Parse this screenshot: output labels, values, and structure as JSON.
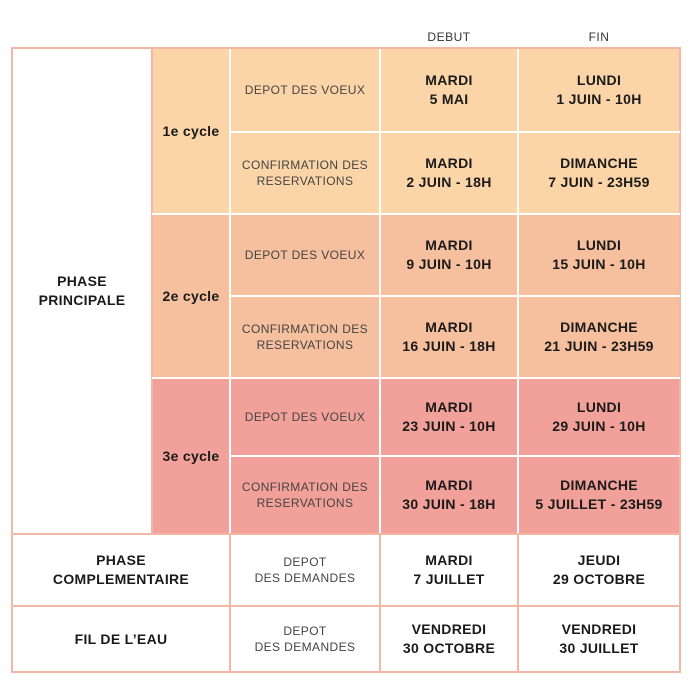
{
  "header": {
    "debut": "DEBUT",
    "fin": "FIN"
  },
  "phase_principale": {
    "label_line1": "PHASE",
    "label_line2": "PRINCIPALE",
    "cycles": [
      {
        "name": "1e cycle",
        "rows": [
          {
            "step": "DEPOT DES VOEUX",
            "debut": [
              "MARDI",
              "5 MAI"
            ],
            "fin": [
              "LUNDI",
              "1 JUIN - 10H"
            ]
          },
          {
            "step_line1": "CONFIRMATION DES",
            "step_line2": "RESERVATIONS",
            "debut": [
              "MARDI",
              "2 JUIN - 18H"
            ],
            "fin": [
              "DIMANCHE",
              "7 JUIN - 23H59"
            ]
          }
        ]
      },
      {
        "name": "2e cycle",
        "rows": [
          {
            "step": "DEPOT DES VOEUX",
            "debut": [
              "MARDI",
              "9 JUIN - 10H"
            ],
            "fin": [
              "LUNDI",
              "15 JUIN - 10H"
            ]
          },
          {
            "step_line1": "CONFIRMATION DES",
            "step_line2": "RESERVATIONS",
            "debut": [
              "MARDI",
              "16 JUIN - 18H"
            ],
            "fin": [
              "DIMANCHE",
              "21 JUIN - 23H59"
            ]
          }
        ]
      },
      {
        "name": "3e cycle",
        "rows": [
          {
            "step": "DEPOT DES VOEUX",
            "debut": [
              "MARDI",
              "23 JUIN - 10H"
            ],
            "fin": [
              "LUNDI",
              "29 JUIN - 10H"
            ]
          },
          {
            "step_line1": "CONFIRMATION DES",
            "step_line2": "RESERVATIONS",
            "debut": [
              "MARDI",
              "30 JUIN - 18H"
            ],
            "fin": [
              "DIMANCHE",
              "5 JUILLET - 23H59"
            ]
          }
        ]
      }
    ]
  },
  "phase_complementaire": {
    "label_line1": "PHASE",
    "label_line2": "COMPLEMENTAIRE",
    "step_line1": "DEPOT",
    "step_line2": "DES DEMANDES",
    "debut": [
      "MARDI",
      "7 JUILLET"
    ],
    "fin": [
      "JEUDI",
      "29 OCTOBRE"
    ]
  },
  "fil_de_leau": {
    "label": "FIL DE L’EAU",
    "step_line1": "DEPOT",
    "step_line2": "DES DEMANDES",
    "debut": [
      "VENDREDI",
      "30 OCTOBRE"
    ],
    "fin": [
      "VENDREDI",
      "30 JUILLET"
    ]
  },
  "colors": {
    "cycle1": "#fbd5a7",
    "cycle2": "#f6bf9e",
    "cycle3": "#f2a19a",
    "grid": "#f3b7a6"
  }
}
